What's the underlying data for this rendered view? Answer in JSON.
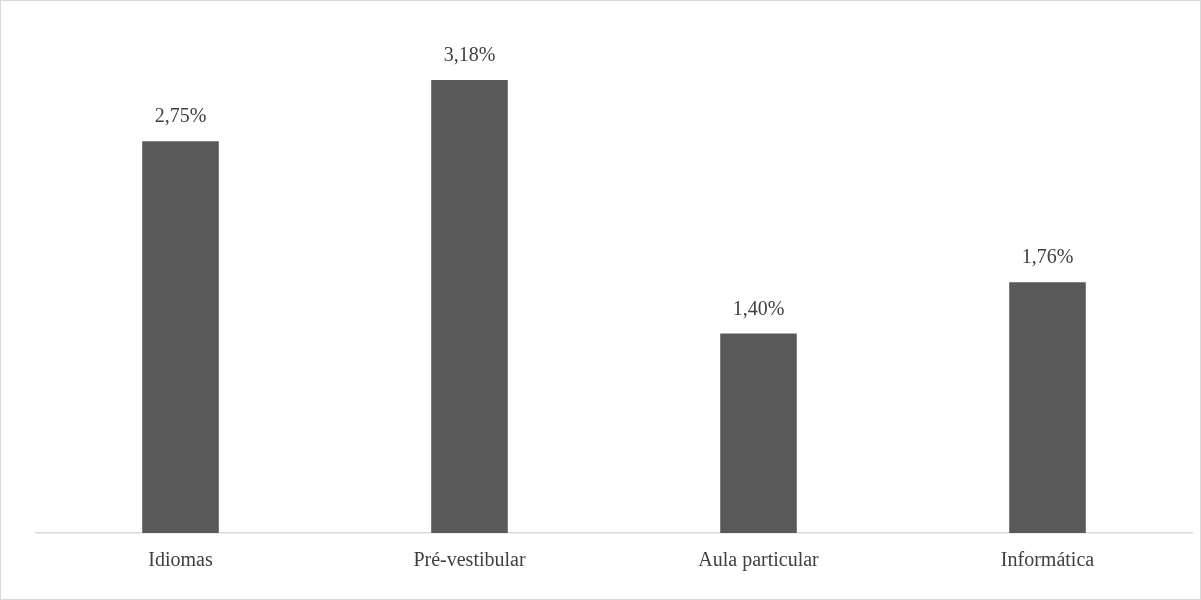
{
  "chart_data": {
    "type": "bar",
    "categories": [
      "Idiomas",
      "Pré-vestibular",
      "Aula particular",
      "Informática"
    ],
    "values": [
      2.75,
      3.18,
      1.4,
      1.76
    ],
    "value_labels": [
      "2,75%",
      "3,18%",
      "1,40%",
      "1,76%"
    ],
    "color": "#595959",
    "grid": false,
    "legend": false
  }
}
